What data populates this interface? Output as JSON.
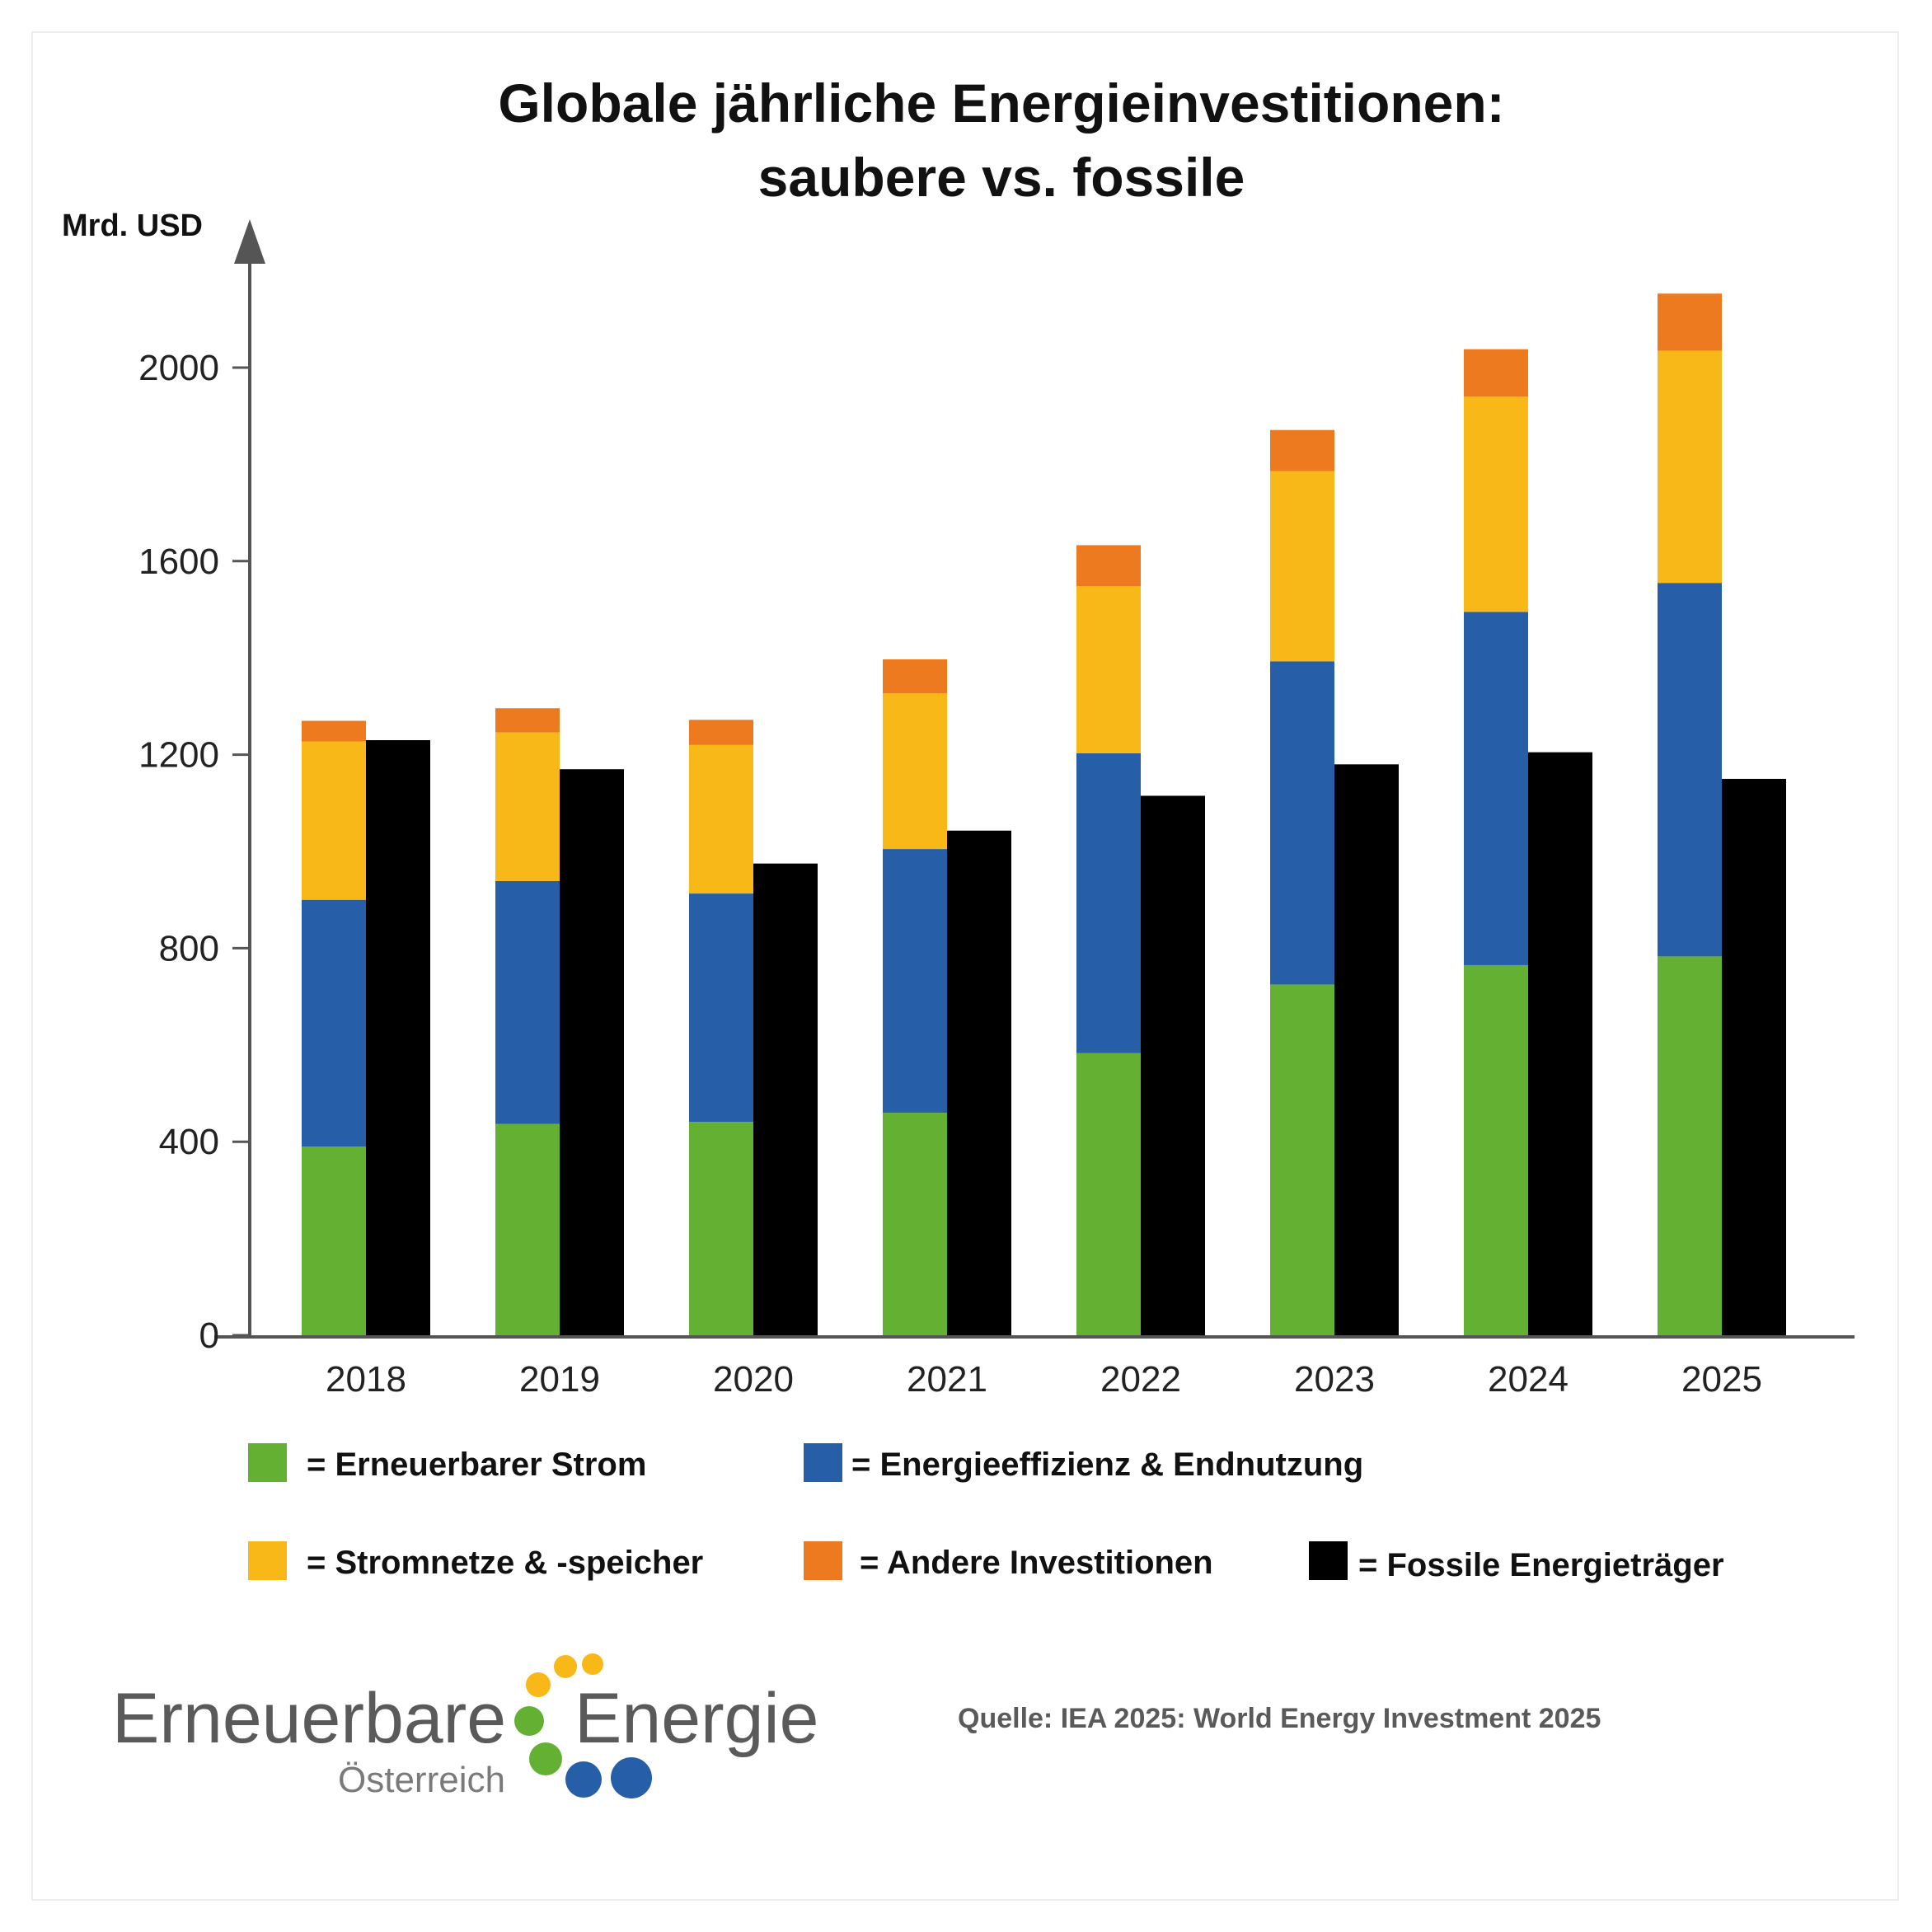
{
  "colors": {
    "renewable": "#63b032",
    "efficiency": "#265fa8",
    "grids": "#f8b818",
    "other": "#ee7a20",
    "fossil": "#000000",
    "axis": "#555555",
    "logo_yellow": "#f8b818",
    "logo_green": "#63b032",
    "logo_blue": "#265fa8"
  },
  "chart_data": {
    "type": "bar",
    "stacked": true,
    "title": "Globale jährliche Energieinvestitionen: saubere vs. fossile",
    "title_lines": [
      "Globale jährliche Energieinvestitionen:",
      "saubere vs. fossile"
    ],
    "ylabel": "Mrd. USD",
    "xlabel": "",
    "ylim": [
      0,
      2200
    ],
    "yticks": [
      0,
      400,
      800,
      1200,
      1600,
      2000
    ],
    "grid": false,
    "categories": [
      "2018",
      "2019",
      "2020",
      "2021",
      "2022",
      "2023",
      "2024",
      "2025"
    ],
    "series": [
      {
        "key": "renewable",
        "name": "Erneuerbarer Strom",
        "stack": "clean",
        "values": [
          390,
          437,
          441,
          460,
          583,
          725,
          765,
          783
        ]
      },
      {
        "key": "efficiency",
        "name": "Energieeffizienz & Endnutzung",
        "stack": "clean",
        "values": [
          510,
          502,
          472,
          545,
          620,
          668,
          730,
          772
        ]
      },
      {
        "key": "grids",
        "name": "Stromnetze & -speicher",
        "stack": "clean",
        "values": [
          327,
          307,
          307,
          322,
          345,
          393,
          445,
          480
        ]
      },
      {
        "key": "other",
        "name": "Andere Investitionen",
        "stack": "clean",
        "values": [
          43,
          50,
          52,
          70,
          85,
          85,
          98,
          118
        ]
      },
      {
        "key": "fossil",
        "name": "Fossile Energieträger",
        "stack": "fossil",
        "values": [
          1230,
          1170,
          975,
          1043,
          1115,
          1180,
          1205,
          1150
        ]
      }
    ],
    "legend": {
      "placement": "bottom",
      "rows": [
        [
          {
            "key": "renewable",
            "label": "= Erneuerbarer Strom"
          },
          {
            "key": "efficiency",
            "label": "= Energieeffizienz & Endnutzung"
          }
        ],
        [
          {
            "key": "grids",
            "label": "= Stromnetze & -speicher"
          },
          {
            "key": "other",
            "label": "= Andere Investitionen"
          },
          {
            "key": "fossil",
            "label": "= Fossile Energieträger"
          }
        ]
      ]
    }
  },
  "logo": {
    "line1_left": "Erneuerbare",
    "line1_right": "Energie",
    "line2": "Österreich"
  },
  "source": "Quelle: IEA 2025: World Energy Investment 2025"
}
